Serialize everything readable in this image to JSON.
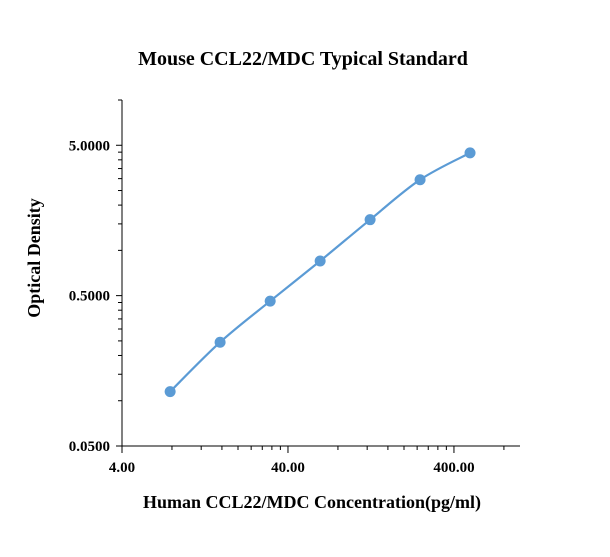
{
  "chart_data": {
    "type": "scatter",
    "title": "Mouse CCL22/MDC Typical Standard",
    "xlabel": "Human CCL22/MDC Concentration(pg/ml)",
    "ylabel": "Optical Density",
    "xscale": "log",
    "yscale": "log",
    "xlim": [
      4,
      1000
    ],
    "ylim": [
      0.05,
      10
    ],
    "xticks": [
      "4.00",
      "40.00",
      "400.00"
    ],
    "yticks": [
      "0.0500",
      "0.5000",
      "5.0000"
    ],
    "grid": false,
    "legend": "none",
    "series": [
      {
        "x": [
          7.8,
          15.6,
          31.25,
          62.5,
          125,
          250,
          500
        ],
        "y": [
          0.115,
          0.245,
          0.46,
          0.85,
          1.6,
          2.95,
          4.45
        ],
        "color": "#5b9bd5",
        "smooth_line": true
      }
    ]
  }
}
